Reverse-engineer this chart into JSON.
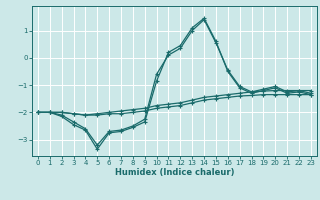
{
  "xlabel": "Humidex (Indice chaleur)",
  "background_color": "#cce8e8",
  "grid_color": "#b0d0d0",
  "line_color": "#1a6b6b",
  "xlim": [
    -0.5,
    23.5
  ],
  "ylim": [
    -3.6,
    1.9
  ],
  "yticks": [
    -3,
    -2,
    -1,
    0,
    1
  ],
  "xticks": [
    0,
    1,
    2,
    3,
    4,
    5,
    6,
    7,
    8,
    9,
    10,
    11,
    12,
    13,
    14,
    15,
    16,
    17,
    18,
    19,
    20,
    21,
    22,
    23
  ],
  "line1_x": [
    0,
    1,
    2,
    3,
    4,
    5,
    6,
    7,
    8,
    9,
    10,
    11,
    12,
    13,
    14,
    15,
    16,
    17,
    18,
    19,
    20,
    21,
    22,
    23
  ],
  "line1_y": [
    -2.0,
    -2.0,
    -2.0,
    -2.05,
    -2.1,
    -2.1,
    -2.05,
    -2.05,
    -2.0,
    -1.95,
    -1.85,
    -1.8,
    -1.75,
    -1.65,
    -1.55,
    -1.5,
    -1.45,
    -1.4,
    -1.38,
    -1.35,
    -1.35,
    -1.35,
    -1.35,
    -1.35
  ],
  "line2_x": [
    0,
    1,
    2,
    3,
    4,
    5,
    6,
    7,
    8,
    9,
    10,
    11,
    12,
    13,
    14,
    15,
    16,
    17,
    18,
    19,
    20,
    21,
    22,
    23
  ],
  "line2_y": [
    -2.0,
    -2.0,
    -2.0,
    -2.05,
    -2.1,
    -2.05,
    -2.0,
    -1.95,
    -1.9,
    -1.85,
    -1.75,
    -1.7,
    -1.65,
    -1.55,
    -1.45,
    -1.4,
    -1.35,
    -1.3,
    -1.25,
    -1.22,
    -1.2,
    -1.2,
    -1.2,
    -1.2
  ],
  "line3_x": [
    0,
    1,
    2,
    3,
    4,
    5,
    6,
    7,
    8,
    9,
    10,
    11,
    12,
    13,
    14,
    15,
    16,
    17,
    18,
    19,
    20,
    21,
    22,
    23
  ],
  "line3_y": [
    -2.0,
    -2.0,
    -2.15,
    -2.45,
    -2.65,
    -3.35,
    -2.75,
    -2.7,
    -2.55,
    -2.35,
    -0.85,
    0.2,
    0.45,
    1.1,
    1.45,
    0.6,
    -0.5,
    -1.1,
    -1.3,
    -1.2,
    -1.1,
    -1.3,
    -1.25,
    -1.35
  ],
  "line4_x": [
    0,
    1,
    2,
    3,
    4,
    5,
    6,
    7,
    8,
    9,
    10,
    11,
    12,
    13,
    14,
    15,
    16,
    17,
    18,
    19,
    20,
    21,
    22,
    23
  ],
  "line4_y": [
    -2.0,
    -2.0,
    -2.1,
    -2.35,
    -2.6,
    -3.2,
    -2.7,
    -2.65,
    -2.5,
    -2.25,
    -0.6,
    0.1,
    0.35,
    1.0,
    1.4,
    0.55,
    -0.45,
    -1.05,
    -1.25,
    -1.15,
    -1.05,
    -1.25,
    -1.2,
    -1.3
  ]
}
